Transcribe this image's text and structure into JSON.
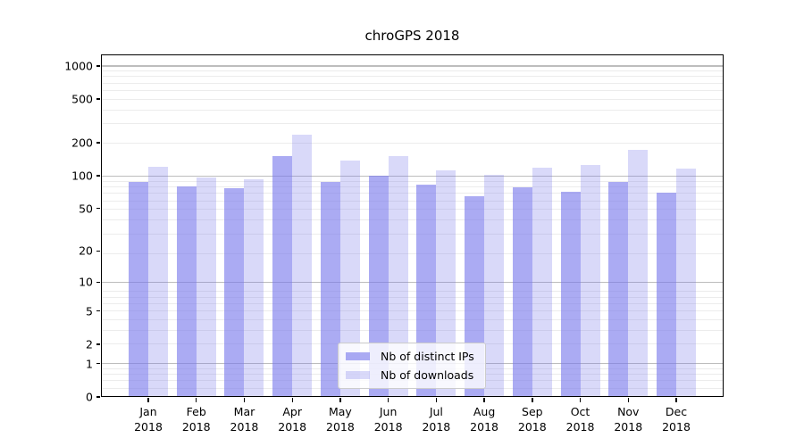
{
  "title": "chroGPS 2018",
  "chart_data": {
    "type": "bar",
    "title": "chroGPS 2018",
    "categories": [
      "Jan",
      "Feb",
      "Mar",
      "Apr",
      "May",
      "Jun",
      "Jul",
      "Aug",
      "Sep",
      "Oct",
      "Nov",
      "Dec"
    ],
    "year_label": "2018",
    "series": [
      {
        "name": "Nb of distinct IPs",
        "values": [
          88,
          80,
          77,
          150,
          88,
          100,
          83,
          65,
          78,
          72,
          87,
          70
        ],
        "alpha": 0.62
      },
      {
        "name": "Nb of downloads",
        "values": [
          120,
          97,
          93,
          235,
          138,
          150,
          113,
          102,
          118,
          125,
          172,
          116
        ],
        "alpha": 0.28
      }
    ],
    "base_color": "#7878eb",
    "scale": "log1p",
    "yticks": [
      1000,
      500,
      200,
      100,
      50,
      20,
      10,
      5,
      2,
      1,
      0
    ],
    "ylim": [
      0,
      1270
    ],
    "xlabel": "",
    "ylabel": "",
    "grid": "both",
    "legend_position": "lower center"
  }
}
